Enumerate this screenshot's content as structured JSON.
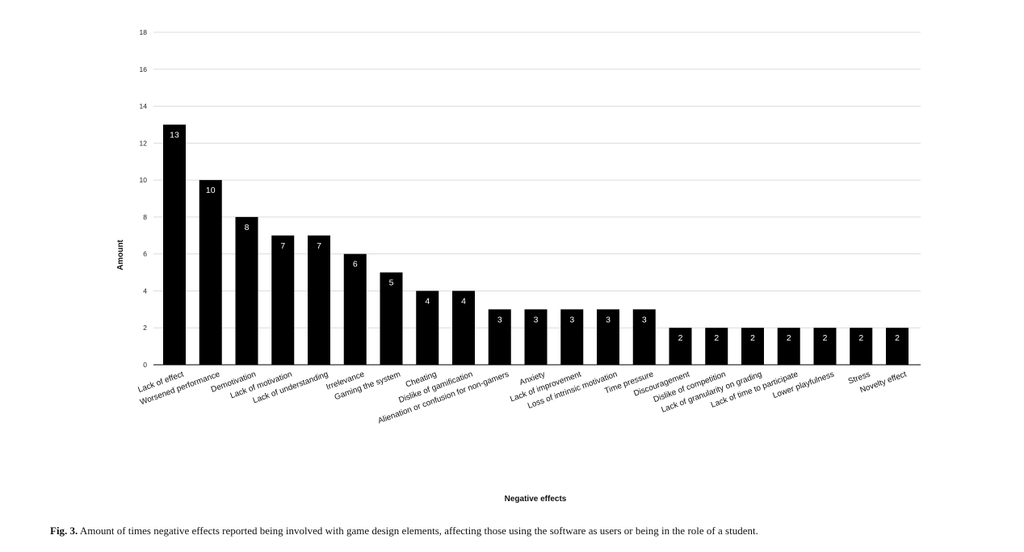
{
  "chart_data": {
    "type": "bar",
    "categories": [
      "Lack of effect",
      "Worsened performance",
      "Demotivation",
      "Lack of motivation",
      "Lack of understanding",
      "Irrelevance",
      "Gaming the system",
      "Cheating",
      "Dislike of gamification",
      "Alienation or confusion for non-gamers",
      "Anxiety",
      "Lack of improvement",
      "Loss of intrinsic motivation",
      "Time pressure",
      "Discouragement",
      "Dislike of competition",
      "Lack of granularity on grading",
      "Lack of time to participate",
      "Lower playfulness",
      "Stress",
      "Novelty effect"
    ],
    "values": [
      13,
      10,
      8,
      7,
      7,
      6,
      5,
      4,
      4,
      3,
      3,
      3,
      3,
      3,
      2,
      2,
      2,
      2,
      2,
      2,
      2
    ],
    "xlabel": "Negative effects",
    "ylabel": "Amount",
    "ylim": [
      0,
      18
    ],
    "yticks": [
      0,
      2,
      4,
      6,
      8,
      10,
      12,
      14,
      16,
      18
    ],
    "grid": true,
    "bar_color": "#000000",
    "grid_color": "#dcdcdc",
    "value_labels": true
  },
  "caption": {
    "label": "Fig. 3.",
    "text": "Amount of times negative effects reported being involved with game design elements, affecting those using the software as users  or being in the role of a student."
  }
}
